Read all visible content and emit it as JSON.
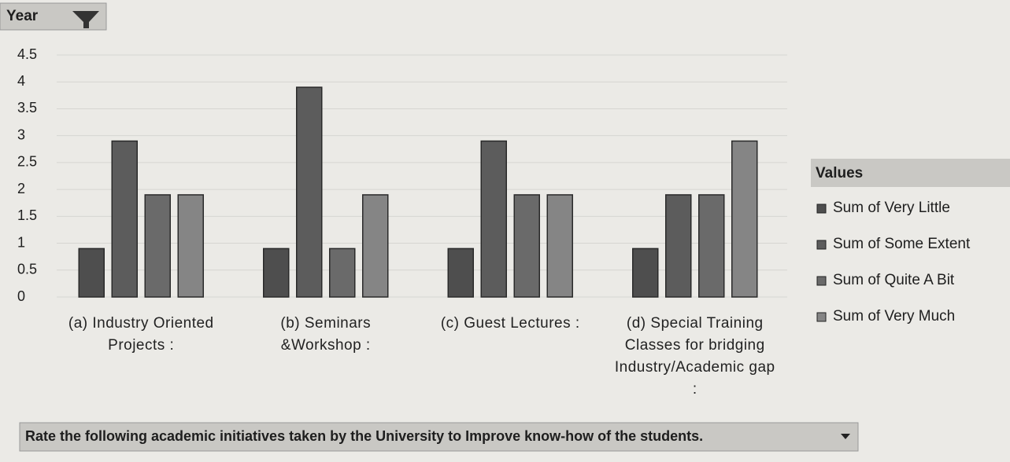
{
  "chart_data": {
    "type": "bar",
    "filter_label": "Year",
    "legend_title": "Values",
    "x_label": "Rate the following academic initiatives taken by the University  to Improve know-how of the students.",
    "categories": [
      "(a)  Industry Oriented Projects :",
      "(b)  Seminars &Workshop :",
      "(c)  Guest Lectures :",
      "(d)  Special Training Classes for bridging Industry/Academic gap :"
    ],
    "series": [
      {
        "name": "Sum of Very Little",
        "color": "#4e4e4e",
        "values": [
          0.9,
          0.9,
          0.9,
          0.9
        ]
      },
      {
        "name": "Sum of Some Extent",
        "color": "#5c5c5c",
        "values": [
          2.9,
          3.9,
          2.9,
          1.9
        ]
      },
      {
        "name": "Sum of  Quite A Bit",
        "color": "#6a6a6a",
        "values": [
          1.9,
          0.9,
          1.9,
          1.9
        ]
      },
      {
        "name": "Sum of  Very Much",
        "color": "#858585",
        "values": [
          1.9,
          1.9,
          1.9,
          2.9
        ]
      }
    ],
    "ylim": [
      0,
      4.5
    ],
    "yticks": [
      0,
      0.5,
      1,
      1.5,
      2,
      2.5,
      3,
      3.5,
      4,
      4.5
    ],
    "grid": true
  }
}
